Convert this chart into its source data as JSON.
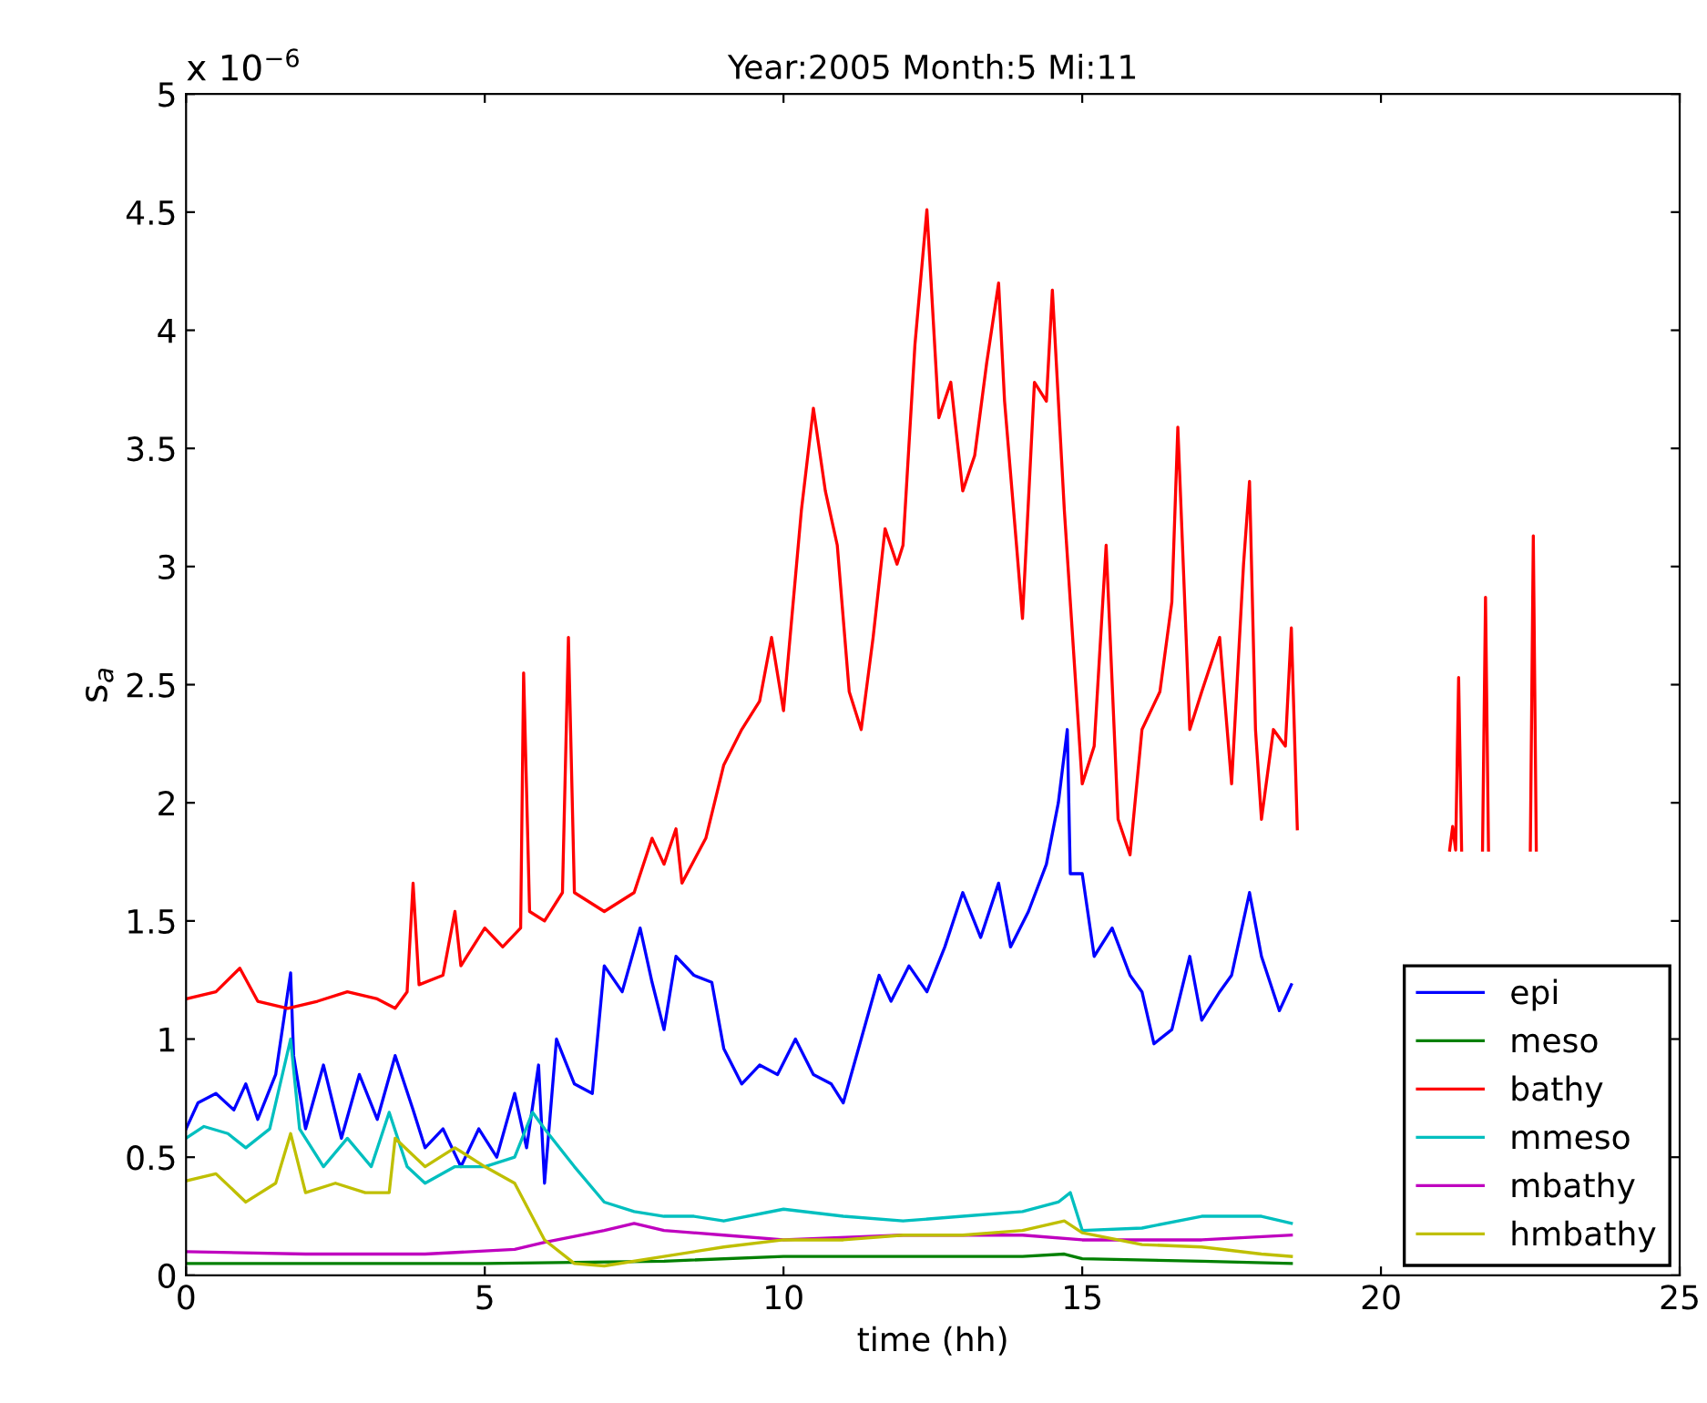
{
  "chart_data": {
    "type": "line",
    "title": "Year:2005 Month:5 Mi:11",
    "xlabel": "time (hh)",
    "ylabel": "s$_{a}$",
    "annotations": [
      "x 10$^{−6}$"
    ],
    "xlim": [
      0,
      25
    ],
    "xticks": [
      0,
      5,
      10,
      15,
      20,
      25
    ],
    "ylim": [
      0,
      5
    ],
    "yticks": [
      0,
      0.5,
      1,
      1.5,
      2,
      2.5,
      3,
      3.5,
      4,
      4.5,
      5
    ],
    "grid": false,
    "legend": "bottom right",
    "marker": "none",
    "line_style": "solid",
    "series": [
      {
        "name": "epi",
        "color": "#0000ff",
        "x": [
          0,
          0.2,
          0.5,
          0.8,
          1.0,
          1.2,
          1.5,
          1.75,
          1.8,
          2.0,
          2.3,
          2.6,
          2.9,
          3.2,
          3.5,
          3.8,
          4.0,
          4.3,
          4.6,
          4.9,
          5.2,
          5.5,
          5.7,
          5.9,
          6.0,
          6.2,
          6.5,
          6.8,
          7.0,
          7.3,
          7.6,
          7.8,
          8.0,
          8.2,
          8.5,
          8.8,
          9.0,
          9.3,
          9.6,
          9.9,
          10.2,
          10.5,
          10.8,
          11.0,
          11.3,
          11.6,
          11.8,
          12.1,
          12.4,
          12.7,
          13.0,
          13.3,
          13.6,
          13.8,
          14.1,
          14.4,
          14.6,
          14.75,
          14.8,
          15.0,
          15.2,
          15.5,
          15.8,
          16.0,
          16.2,
          16.5,
          16.8,
          17.0,
          17.3,
          17.5,
          17.8,
          18.0,
          18.3,
          18.5
        ],
        "values": [
          0.62,
          0.73,
          0.77,
          0.7,
          0.81,
          0.66,
          0.85,
          1.28,
          0.93,
          0.62,
          0.89,
          0.58,
          0.85,
          0.66,
          0.93,
          0.7,
          0.54,
          0.62,
          0.46,
          0.62,
          0.5,
          0.77,
          0.54,
          0.89,
          0.39,
          1.0,
          0.81,
          0.77,
          1.31,
          1.2,
          1.47,
          1.24,
          1.04,
          1.35,
          1.27,
          1.24,
          0.96,
          0.81,
          0.89,
          0.85,
          1.0,
          0.85,
          0.81,
          0.73,
          1.0,
          1.27,
          1.16,
          1.31,
          1.2,
          1.39,
          1.62,
          1.43,
          1.66,
          1.39,
          1.54,
          1.74,
          2.0,
          2.31,
          1.7,
          1.7,
          1.35,
          1.47,
          1.27,
          1.2,
          0.98,
          1.04,
          1.35,
          1.08,
          1.2,
          1.27,
          1.62,
          1.35,
          1.12,
          1.23
        ]
      },
      {
        "name": "meso",
        "color": "#008000",
        "x": [
          0,
          5,
          8,
          10,
          12,
          14,
          14.7,
          15,
          17,
          18.5
        ],
        "values": [
          0.05,
          0.05,
          0.06,
          0.08,
          0.08,
          0.08,
          0.09,
          0.07,
          0.06,
          0.05
        ]
      },
      {
        "name": "bathy",
        "color": "#ff0000",
        "x": [
          0,
          0.5,
          0.9,
          1.2,
          1.7,
          2.2,
          2.7,
          3.2,
          3.5,
          3.7,
          3.8,
          3.9,
          4.3,
          4.5,
          4.6,
          5.0,
          5.3,
          5.6,
          5.65,
          5.75,
          6.0,
          6.3,
          6.4,
          6.5,
          7.0,
          7.5,
          7.8,
          8.0,
          8.2,
          8.3,
          8.7,
          9.0,
          9.3,
          9.6,
          9.8,
          10.0,
          10.3,
          10.5,
          10.7,
          10.9,
          11.1,
          11.3,
          11.5,
          11.7,
          11.9,
          12.0,
          12.2,
          12.4,
          12.6,
          12.8,
          13.0,
          13.2,
          13.4,
          13.6,
          13.7,
          13.9,
          14.0,
          14.2,
          14.4,
          14.5,
          14.7,
          15.0,
          15.2,
          15.4,
          15.6,
          15.8,
          16.0,
          16.3,
          16.5,
          16.6,
          16.8,
          17.0,
          17.3,
          17.5,
          17.7,
          17.8,
          17.9,
          18.0,
          18.2,
          18.4,
          18.5,
          18.6,
          18.7,
          21.15,
          21.2,
          21.25,
          21.3,
          21.35,
          21.4,
          21.7,
          21.75,
          21.8,
          21.85,
          22.5,
          22.55,
          22.6
        ],
        "values": [
          1.17,
          1.2,
          1.3,
          1.16,
          1.13,
          1.16,
          1.2,
          1.17,
          1.13,
          1.2,
          1.66,
          1.23,
          1.27,
          1.54,
          1.31,
          1.47,
          1.39,
          1.47,
          2.55,
          1.54,
          1.5,
          1.62,
          2.7,
          1.62,
          1.54,
          1.62,
          1.85,
          1.74,
          1.89,
          1.66,
          1.85,
          2.16,
          2.31,
          2.43,
          2.7,
          2.39,
          3.24,
          3.67,
          3.32,
          3.09,
          2.47,
          2.31,
          2.7,
          3.16,
          3.01,
          3.09,
          3.94,
          4.51,
          3.63,
          3.78,
          3.32,
          3.47,
          3.86,
          4.2,
          3.7,
          3.09,
          2.78,
          3.78,
          3.7,
          4.17,
          3.24,
          2.08,
          2.24,
          3.09,
          1.93,
          1.78,
          2.31,
          2.47,
          2.85,
          3.59,
          2.31,
          2.47,
          2.7,
          2.08,
          3.01,
          3.36,
          2.31,
          1.93,
          2.31,
          2.24,
          2.74,
          1.89,
          null,
          1.8,
          1.9,
          1.8,
          2.53,
          1.8,
          null,
          1.8,
          2.87,
          1.8,
          null,
          1.8,
          3.13,
          1.8
        ]
      },
      {
        "name": "mmeso",
        "color": "#00bfbf",
        "x": [
          0,
          0.3,
          0.7,
          1.0,
          1.4,
          1.75,
          1.9,
          2.3,
          2.7,
          3.1,
          3.4,
          3.7,
          4.0,
          4.5,
          5.0,
          5.5,
          5.8,
          6.0,
          6.5,
          7.0,
          7.5,
          8.0,
          8.5,
          9.0,
          10.0,
          11.0,
          12.0,
          13.0,
          14.0,
          14.6,
          14.8,
          15.0,
          16.0,
          17.0,
          18.0,
          18.5
        ],
        "values": [
          0.58,
          0.63,
          0.6,
          0.54,
          0.62,
          1.0,
          0.62,
          0.46,
          0.58,
          0.46,
          0.69,
          0.46,
          0.39,
          0.46,
          0.46,
          0.5,
          0.69,
          0.62,
          0.46,
          0.31,
          0.27,
          0.25,
          0.25,
          0.23,
          0.28,
          0.25,
          0.23,
          0.25,
          0.27,
          0.31,
          0.35,
          0.19,
          0.2,
          0.25,
          0.25,
          0.22
        ]
      },
      {
        "name": "mbathy",
        "color": "#bf00bf",
        "x": [
          0,
          2,
          4,
          5.5,
          6,
          7,
          7.5,
          8,
          9,
          10,
          12,
          14,
          15,
          16,
          17,
          18.5
        ],
        "values": [
          0.1,
          0.09,
          0.09,
          0.11,
          0.14,
          0.19,
          0.22,
          0.19,
          0.17,
          0.15,
          0.17,
          0.17,
          0.15,
          0.15,
          0.15,
          0.17
        ]
      },
      {
        "name": "hmbathy",
        "color": "#bfbf00",
        "x": [
          0,
          0.5,
          1.0,
          1.5,
          1.75,
          2.0,
          2.5,
          3.0,
          3.4,
          3.5,
          4.0,
          4.5,
          5.0,
          5.5,
          6.0,
          6.5,
          7.0,
          8.0,
          9.0,
          10.0,
          11.0,
          12.0,
          13.0,
          14.0,
          14.7,
          15.0,
          16.0,
          17.0,
          18.0,
          18.5
        ],
        "values": [
          0.4,
          0.43,
          0.31,
          0.39,
          0.6,
          0.35,
          0.39,
          0.35,
          0.35,
          0.58,
          0.46,
          0.54,
          0.46,
          0.39,
          0.15,
          0.05,
          0.04,
          0.08,
          0.12,
          0.15,
          0.15,
          0.17,
          0.17,
          0.19,
          0.23,
          0.18,
          0.13,
          0.12,
          0.09,
          0.08
        ]
      }
    ]
  }
}
